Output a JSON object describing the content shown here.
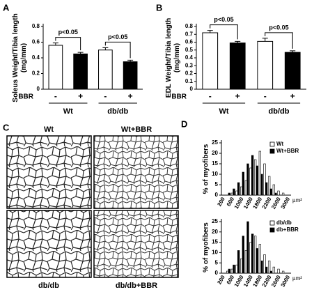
{
  "chart_data": [
    {
      "type": "bar",
      "panel_label": "A",
      "y_label": [
        "Soleus Weight/Tibia length",
        "(mg/mm)"
      ],
      "categories": [
        "-",
        "+",
        "-",
        "+"
      ],
      "groups": [
        "Wt",
        "db/db"
      ],
      "group_label": "BBR",
      "values": [
        0.56,
        0.45,
        0.5,
        0.35
      ],
      "errors": [
        0.03,
        0.02,
        0.03,
        0.02
      ],
      "colors": [
        "#ffffff",
        "#000000",
        "#ffffff",
        "#000000"
      ],
      "annotations": [
        "p<0.05",
        "p<0.05"
      ],
      "ylim": [
        0,
        0.8
      ],
      "yticks": [
        0,
        0.2,
        0.4,
        0.6,
        0.8
      ]
    },
    {
      "type": "bar",
      "panel_label": "B",
      "y_label": [
        "EDL Weight/Tibia length",
        "(mg/mm)"
      ],
      "categories": [
        "-",
        "+",
        "-",
        "+"
      ],
      "groups": [
        "Wt",
        "db/db"
      ],
      "group_label": "BBR",
      "values": [
        0.72,
        0.59,
        0.61,
        0.47
      ],
      "errors": [
        0.03,
        0.02,
        0.04,
        0.02
      ],
      "colors": [
        "#ffffff",
        "#000000",
        "#ffffff",
        "#000000"
      ],
      "annotations": [
        "p<0.05",
        "p<0.05"
      ],
      "ylim": [
        0,
        0.8
      ],
      "yticks": [
        0,
        0.1,
        0.2,
        0.3,
        0.4,
        0.5,
        0.6,
        0.7,
        0.8
      ]
    },
    {
      "type": "grouped_bar",
      "panel_label": "D",
      "y_label": "% of myofibers",
      "x_unit": "µm²",
      "categories": [
        200,
        null,
        600,
        null,
        1000,
        null,
        1400,
        null,
        1800,
        null,
        2200,
        null,
        2600,
        null,
        3000
      ],
      "series": [
        {
          "name": "Wt",
          "color": "#ffffff",
          "values": [
            0,
            0,
            1,
            2,
            4,
            7,
            13,
            17,
            21,
            15,
            9,
            5,
            2,
            1,
            0
          ]
        },
        {
          "name": "Wt+BBR",
          "color": "#000000",
          "values": [
            0,
            1,
            3,
            6,
            11,
            15,
            19,
            14,
            10,
            6,
            3,
            1,
            0,
            0,
            0
          ]
        }
      ],
      "ylim": [
        0,
        25
      ],
      "yticks": [
        0,
        5,
        10,
        15,
        20,
        25
      ]
    },
    {
      "type": "grouped_bar",
      "y_label": "% of myofibers",
      "x_unit": "µm²",
      "categories": [
        200,
        null,
        600,
        null,
        1000,
        null,
        1400,
        null,
        1800,
        null,
        2200,
        null,
        2600,
        null,
        3000
      ],
      "series": [
        {
          "name": "db/db",
          "color": "#ffffff",
          "values": [
            0,
            1,
            2,
            4,
            7,
            11,
            15,
            18,
            14,
            9,
            6,
            3,
            2,
            1,
            0
          ]
        },
        {
          "name": "db+BBR",
          "color": "#000000",
          "values": [
            0,
            2,
            4,
            11,
            18,
            25,
            19,
            12,
            6,
            3,
            1,
            0,
            0,
            0,
            0
          ]
        }
      ],
      "ylim": [
        0,
        25
      ],
      "yticks": [
        0,
        5,
        10,
        15,
        20,
        25
      ]
    }
  ],
  "micrographs": {
    "panel_label": "C",
    "labels": [
      "Wt",
      "Wt+BBR",
      "db/db",
      "db/db+BBR"
    ]
  }
}
